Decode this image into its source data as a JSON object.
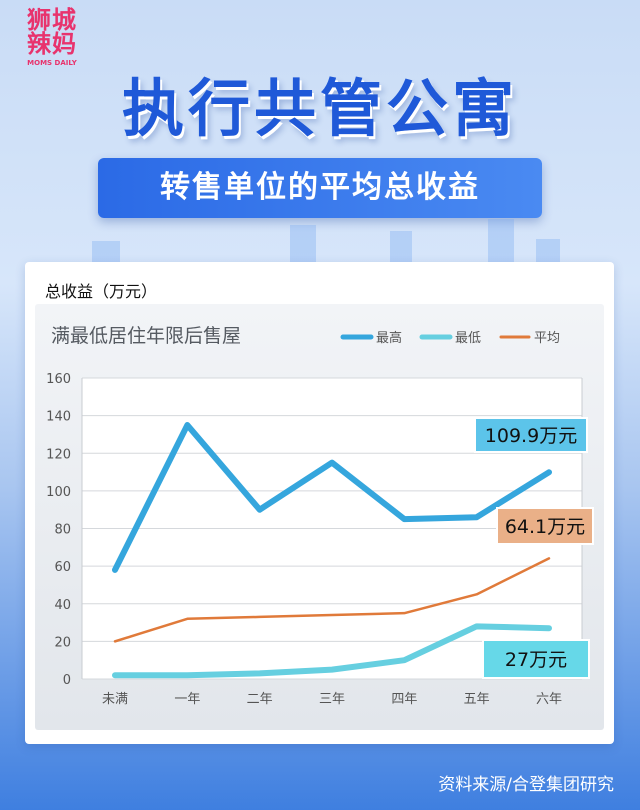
{
  "logo": {
    "cn_line1": "狮城",
    "cn_line2": "辣妈",
    "en": "MOMS DAILY"
  },
  "title": "执行共管公寓",
  "subtitle": "转售单位的平均总收益",
  "card_label": "总收益（万元）",
  "source": "资料来源/合登集团研究",
  "colors": {
    "highest": "#35a6dd",
    "lowest": "#66cfe0",
    "average": "#e07a3a",
    "title": "#1f59d8",
    "callout_blue": "#5cc4ea",
    "callout_orange": "#eab088",
    "callout_cyan": "#66d8e8"
  },
  "chart_data": {
    "type": "line",
    "title": "满最低居住年限后售屋",
    "categories": [
      "未满",
      "一年",
      "二年",
      "三年",
      "四年",
      "五年",
      "六年"
    ],
    "ylim": [
      0,
      160
    ],
    "yticks": [
      0,
      20,
      40,
      60,
      80,
      100,
      120,
      140,
      160
    ],
    "grid": true,
    "legend_position": "top-right",
    "series": [
      {
        "name": "最高",
        "values": [
          58,
          135,
          90,
          115,
          85,
          86,
          109.9
        ]
      },
      {
        "name": "最低",
        "values": [
          2,
          2,
          3,
          5,
          10,
          28,
          27
        ]
      },
      {
        "name": "平均",
        "values": [
          20,
          32,
          33,
          34,
          35,
          45,
          64.1
        ]
      }
    ],
    "annotations": [
      {
        "text": "109.9万元",
        "series": "最高"
      },
      {
        "text": "64.1万元",
        "series": "平均"
      },
      {
        "text": "27万元",
        "series": "最低"
      }
    ]
  }
}
